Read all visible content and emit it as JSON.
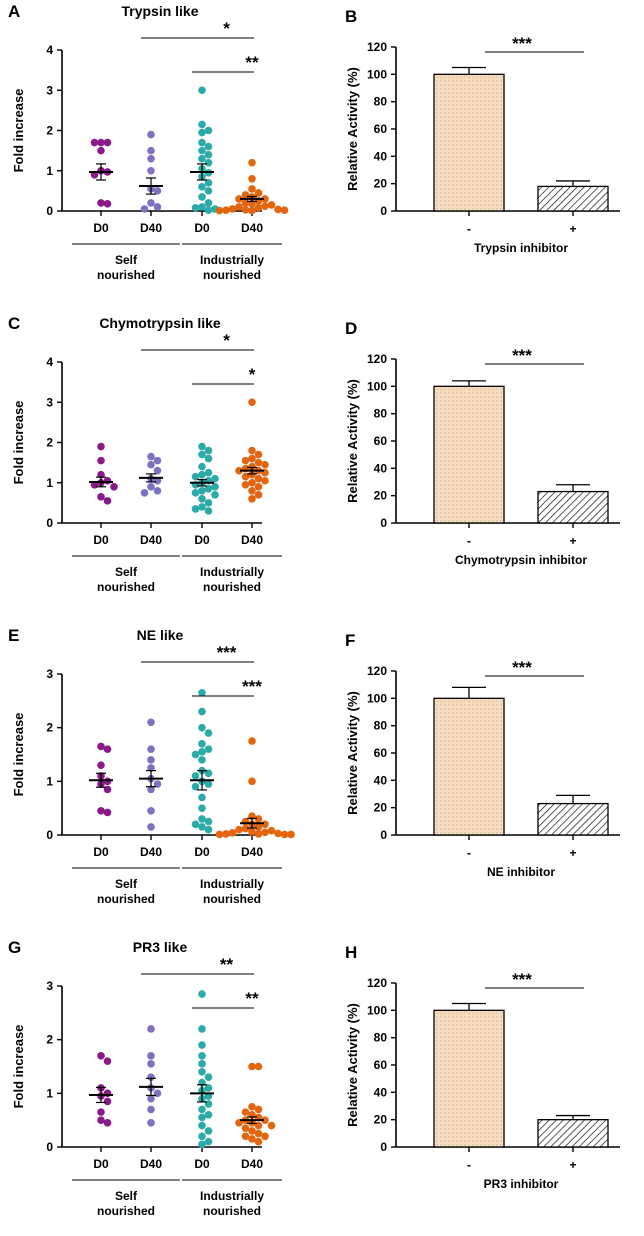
{
  "colors": {
    "self_d0": "#8a1a8a",
    "self_d40": "#7b72c0",
    "ind_d0": "#2aaaa8",
    "ind_d40": "#e3650f",
    "bar_fill": "#f7dcc0"
  },
  "chart_data": [
    {
      "type": "scatter",
      "panel": "A",
      "title": "Trypsin like",
      "ylabel": "Fold increase",
      "ylim": [
        0,
        4
      ],
      "yticks": [
        "0",
        "1",
        "2",
        "3",
        "4"
      ],
      "categories": [
        "D0",
        "D40",
        "D0",
        "D40"
      ],
      "groups": [
        "Self\nnourished",
        "Industrially\nnourished"
      ],
      "series": [
        {
          "name": "Self nourished D0",
          "color": "#8a1a8a",
          "mean": 0.97,
          "sem": 0.2,
          "values": [
            1.7,
            1.7,
            1.7,
            1.5,
            1.0,
            0.97,
            0.9,
            0.2,
            0.18
          ]
        },
        {
          "name": "Self nourished D40",
          "color": "#7b72c0",
          "mean": 0.62,
          "sem": 0.2,
          "values": [
            1.9,
            1.5,
            1.3,
            1.0,
            0.55,
            0.5,
            0.2,
            0.1,
            0.05
          ]
        },
        {
          "name": "Industrially nourished D0",
          "color": "#2aaaa8",
          "mean": 0.97,
          "sem": 0.2,
          "values": [
            3.0,
            2.15,
            2.0,
            1.95,
            1.7,
            1.6,
            1.5,
            1.4,
            1.3,
            1.2,
            1.05,
            0.95,
            0.85,
            0.7,
            0.6,
            0.5,
            0.35,
            0.2,
            0.1,
            0.08,
            0.05,
            0.02
          ]
        },
        {
          "name": "Industrially nourished D40",
          "color": "#e3650f",
          "mean": 0.3,
          "sem": 0.06,
          "values": [
            1.2,
            0.8,
            0.55,
            0.45,
            0.4,
            0.35,
            0.3,
            0.3,
            0.25,
            0.2,
            0.18,
            0.15,
            0.12,
            0.1,
            0.08,
            0.05,
            0.04,
            0.03,
            0.02,
            0.02,
            0.01,
            0.01
          ]
        }
      ],
      "significance": [
        {
          "from": 1,
          "to": 3,
          "label": "*"
        },
        {
          "from": 2,
          "to": 3,
          "label": "**"
        }
      ]
    },
    {
      "type": "bar",
      "panel": "B",
      "ylabel": "Relative Activity (%)",
      "ylim": [
        0,
        120
      ],
      "yticks": [
        "0",
        "20",
        "40",
        "60",
        "80",
        "100",
        "120"
      ],
      "categories": [
        "-",
        "+"
      ],
      "values": [
        100,
        18
      ],
      "errors": [
        5,
        4
      ],
      "xlabel": "Trypsin inhibitor",
      "significance": "***"
    },
    {
      "type": "scatter",
      "panel": "C",
      "title": "Chymotrypsin like",
      "ylabel": "Fold increase",
      "ylim": [
        0,
        4
      ],
      "yticks": [
        "0",
        "1",
        "2",
        "3",
        "4"
      ],
      "categories": [
        "D0",
        "D40",
        "D0",
        "D40"
      ],
      "groups": [
        "Self\nnourished",
        "Industrially\nnourished"
      ],
      "series": [
        {
          "name": "Self nourished D0",
          "color": "#8a1a8a",
          "mean": 1.02,
          "sem": 0.12,
          "values": [
            1.9,
            1.55,
            1.2,
            1.05,
            1.0,
            0.95,
            0.9,
            0.65,
            0.55
          ]
        },
        {
          "name": "Self nourished D40",
          "color": "#7b72c0",
          "mean": 1.12,
          "sem": 0.1,
          "values": [
            1.65,
            1.55,
            1.45,
            1.3,
            1.1,
            1.05,
            0.9,
            0.8,
            0.75
          ]
        },
        {
          "name": "Industrially nourished D0",
          "color": "#2aaaa8",
          "mean": 1.0,
          "sem": 0.08,
          "values": [
            1.9,
            1.8,
            1.7,
            1.6,
            1.4,
            1.25,
            1.2,
            1.15,
            1.1,
            1.05,
            1.0,
            0.95,
            0.9,
            0.85,
            0.8,
            0.75,
            0.7,
            0.6,
            0.5,
            0.4,
            0.35,
            0.3
          ]
        },
        {
          "name": "Industrially nourished D40",
          "color": "#e3650f",
          "mean": 1.3,
          "sem": 0.08,
          "values": [
            3.0,
            1.8,
            1.7,
            1.6,
            1.55,
            1.5,
            1.45,
            1.4,
            1.35,
            1.3,
            1.3,
            1.25,
            1.2,
            1.15,
            1.1,
            1.05,
            1.0,
            0.95,
            0.9,
            0.8,
            0.7,
            0.6
          ]
        }
      ],
      "significance": [
        {
          "from": 1,
          "to": 3,
          "label": "*"
        },
        {
          "from": 2,
          "to": 3,
          "label": "*"
        }
      ]
    },
    {
      "type": "bar",
      "panel": "D",
      "ylabel": "Relative Activity (%)",
      "ylim": [
        0,
        120
      ],
      "yticks": [
        "0",
        "20",
        "40",
        "60",
        "80",
        "100",
        "120"
      ],
      "categories": [
        "-",
        "+"
      ],
      "values": [
        100,
        23
      ],
      "errors": [
        4,
        5
      ],
      "xlabel": "Chymotrypsin inhibitor",
      "significance": "***"
    },
    {
      "type": "scatter",
      "panel": "E",
      "title": "NE like",
      "ylabel": "Fold increase",
      "ylim": [
        0,
        3
      ],
      "yticks": [
        "0",
        "1",
        "2",
        "3"
      ],
      "categories": [
        "D0",
        "D40",
        "D0",
        "D40"
      ],
      "groups": [
        "Self\nnourished",
        "Industrially\nnourished"
      ],
      "series": [
        {
          "name": "Self nourished D0",
          "color": "#8a1a8a",
          "mean": 1.02,
          "sem": 0.13,
          "values": [
            1.65,
            1.6,
            1.3,
            1.1,
            1.0,
            0.95,
            0.85,
            0.45,
            0.42
          ]
        },
        {
          "name": "Self nourished D40",
          "color": "#7b72c0",
          "mean": 1.05,
          "sem": 0.15,
          "values": [
            2.1,
            1.6,
            1.4,
            1.25,
            1.05,
            0.95,
            0.85,
            0.45,
            0.15
          ]
        },
        {
          "name": "Industrially nourished D0",
          "color": "#2aaaa8",
          "mean": 1.02,
          "sem": 0.18,
          "values": [
            2.65,
            2.3,
            2.0,
            1.9,
            1.7,
            1.6,
            1.55,
            1.5,
            1.4,
            1.2,
            1.15,
            1.1,
            1.0,
            0.95,
            0.9,
            0.7,
            0.5,
            0.3,
            0.25,
            0.2,
            0.15,
            0.1
          ]
        },
        {
          "name": "Industrially nourished D40",
          "color": "#e3650f",
          "mean": 0.22,
          "sem": 0.09,
          "values": [
            1.75,
            1.0,
            0.35,
            0.3,
            0.25,
            0.2,
            0.2,
            0.15,
            0.12,
            0.1,
            0.08,
            0.06,
            0.05,
            0.04,
            0.03,
            0.02,
            0.02,
            0.01,
            0.01,
            0.01
          ]
        }
      ],
      "significance": [
        {
          "from": 1,
          "to": 3,
          "label": "***"
        },
        {
          "from": 2,
          "to": 3,
          "label": "***"
        }
      ]
    },
    {
      "type": "bar",
      "panel": "F",
      "ylabel": "Relative Activity (%)",
      "ylim": [
        0,
        120
      ],
      "yticks": [
        "0",
        "20",
        "40",
        "60",
        "80",
        "100",
        "120"
      ],
      "categories": [
        "-",
        "+"
      ],
      "values": [
        100,
        23
      ],
      "errors": [
        8,
        6
      ],
      "xlabel": "NE inhibitor",
      "significance": "***"
    },
    {
      "type": "scatter",
      "panel": "G",
      "title": "PR3 like",
      "ylabel": "Fold increase",
      "ylim": [
        0,
        3
      ],
      "yticks": [
        "0",
        "1",
        "2",
        "3"
      ],
      "categories": [
        "D0",
        "D40",
        "D0",
        "D40"
      ],
      "groups": [
        "Self\nnourished",
        "Industrially\nnourished"
      ],
      "series": [
        {
          "name": "Self nourished D0",
          "color": "#8a1a8a",
          "mean": 0.97,
          "sem": 0.14,
          "values": [
            1.7,
            1.6,
            1.1,
            1.0,
            0.95,
            0.85,
            0.65,
            0.5,
            0.45
          ]
        },
        {
          "name": "Self nourished D40",
          "color": "#7b72c0",
          "mean": 1.12,
          "sem": 0.16,
          "values": [
            2.2,
            1.7,
            1.55,
            1.3,
            1.1,
            1.0,
            0.9,
            0.7,
            0.45
          ]
        },
        {
          "name": "Industrially nourished D0",
          "color": "#2aaaa8",
          "mean": 1.0,
          "sem": 0.16,
          "values": [
            2.85,
            2.2,
            1.9,
            1.7,
            1.55,
            1.4,
            1.3,
            1.2,
            1.1,
            1.05,
            0.95,
            0.9,
            0.8,
            0.7,
            0.6,
            0.55,
            0.4,
            0.3,
            0.2,
            0.1,
            0.05
          ]
        },
        {
          "name": "Industrially nourished D40",
          "color": "#e3650f",
          "mean": 0.5,
          "sem": 0.06,
          "values": [
            1.5,
            1.5,
            0.75,
            0.7,
            0.65,
            0.6,
            0.55,
            0.5,
            0.5,
            0.45,
            0.45,
            0.4,
            0.4,
            0.35,
            0.3,
            0.25,
            0.2,
            0.2,
            0.15,
            0.1
          ]
        }
      ],
      "significance": [
        {
          "from": 1,
          "to": 3,
          "label": "**"
        },
        {
          "from": 2,
          "to": 3,
          "label": "**"
        }
      ]
    },
    {
      "type": "bar",
      "panel": "H",
      "ylabel": "Relative Activity (%)",
      "ylim": [
        0,
        120
      ],
      "yticks": [
        "0",
        "20",
        "40",
        "60",
        "80",
        "100",
        "120"
      ],
      "categories": [
        "-",
        "+"
      ],
      "values": [
        100,
        20
      ],
      "errors": [
        5,
        3
      ],
      "xlabel": "PR3 inhibitor",
      "significance": "***"
    }
  ]
}
